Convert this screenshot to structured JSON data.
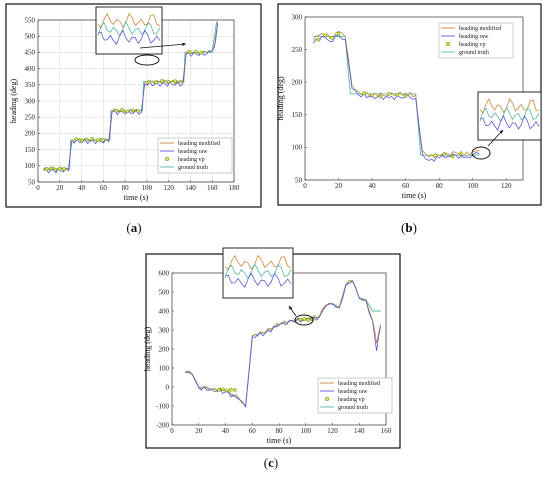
{
  "colors": {
    "modified": "#c98a3a",
    "raw": "#5a5ad8",
    "vp_fill": "#e8e832",
    "vp_edge": "#3a8a3a",
    "truth": "#58b8a0"
  },
  "chart_data": [
    {
      "id": "a",
      "type": "line",
      "panel_label": {
        "open": "(",
        "letter": "a",
        "close": ")"
      },
      "xlabel": "time (s)",
      "ylabel": "heading (deg)",
      "xlim": [
        0,
        180
      ],
      "ylim": [
        50,
        550
      ],
      "xticks": [
        "0",
        "20",
        "40",
        "60",
        "80",
        "100",
        "120",
        "140",
        "160",
        "180"
      ],
      "yticks": [
        "50",
        "100",
        "150",
        "200",
        "250",
        "300",
        "350",
        "400",
        "450",
        "500",
        "550"
      ],
      "grid": true,
      "legend_position": "lower-right",
      "series": [
        {
          "name": "heading modified",
          "key": "modified",
          "x": [
            5,
            28,
            31,
            65,
            68,
            95,
            98,
            133,
            136,
            155,
            158,
            162,
            165
          ],
          "y": [
            90,
            90,
            180,
            180,
            270,
            270,
            358,
            358,
            450,
            450,
            455,
            470,
            545
          ]
        },
        {
          "name": "heading raw",
          "key": "raw",
          "x": [
            5,
            28,
            31,
            65,
            68,
            95,
            98,
            133,
            136,
            155,
            158,
            162,
            165
          ],
          "y": [
            85,
            85,
            175,
            175,
            265,
            265,
            352,
            352,
            445,
            445,
            452,
            465,
            540
          ]
        },
        {
          "name": "ground truth",
          "key": "truth",
          "x": [
            5,
            29,
            30,
            66,
            67,
            96,
            97,
            134,
            135,
            160,
            164
          ],
          "y": [
            90,
            90,
            180,
            180,
            270,
            270,
            360,
            360,
            450,
            450,
            545
          ]
        }
      ],
      "vp_points": {
        "name": "heading vp",
        "x": [
          8,
          12,
          16,
          20,
          24,
          35,
          40,
          45,
          50,
          55,
          60,
          72,
          77,
          82,
          87,
          92,
          102,
          108,
          114,
          120,
          126,
          131,
          140,
          145,
          150
        ],
        "y": [
          90,
          92,
          88,
          91,
          90,
          182,
          178,
          181,
          183,
          179,
          180,
          270,
          272,
          268,
          271,
          269,
          360,
          358,
          362,
          359,
          361,
          360,
          450,
          452,
          449
        ]
      }
    },
    {
      "id": "b",
      "type": "line",
      "panel_label": {
        "open": "(",
        "letter": "b",
        "close": ")"
      },
      "xlabel": "time (s)",
      "ylabel": "heading (deg)",
      "xlim": [
        0,
        130
      ],
      "ylim": [
        50,
        300
      ],
      "xticks": [
        "0",
        "20",
        "40",
        "60",
        "80",
        "100",
        "120"
      ],
      "yticks": [
        "50",
        "100",
        "150",
        "200",
        "250",
        "300"
      ],
      "grid": false,
      "legend_position": "top-right",
      "series": [
        {
          "name": "heading modified",
          "key": "modified",
          "x": [
            5,
            10,
            15,
            20,
            24,
            28,
            32,
            40,
            50,
            60,
            66,
            70,
            74,
            80,
            85,
            90,
            95,
            100,
            104
          ],
          "y": [
            265,
            275,
            268,
            278,
            270,
            195,
            185,
            182,
            180,
            183,
            180,
            95,
            85,
            88,
            90,
            92,
            88,
            93,
            95
          ]
        },
        {
          "name": "heading raw",
          "key": "raw",
          "x": [
            5,
            10,
            15,
            20,
            24,
            28,
            32,
            40,
            50,
            60,
            66,
            70,
            74,
            80,
            85,
            90,
            95,
            100,
            104
          ],
          "y": [
            260,
            270,
            262,
            272,
            265,
            190,
            180,
            178,
            176,
            178,
            175,
            90,
            80,
            84,
            86,
            88,
            84,
            88,
            90
          ]
        },
        {
          "name": "ground truth",
          "key": "truth",
          "x": [
            5,
            24,
            27,
            66,
            69,
            104
          ],
          "y": [
            270,
            270,
            182,
            182,
            88,
            88
          ]
        }
      ],
      "vp_points": {
        "name": "heading vp",
        "x": [
          8,
          12,
          16,
          20,
          35,
          40,
          45,
          50,
          55,
          60,
          78,
          83,
          88,
          93
        ],
        "y": [
          265,
          272,
          268,
          274,
          183,
          180,
          178,
          182,
          181,
          179,
          88,
          90,
          86,
          91
        ]
      }
    },
    {
      "id": "c",
      "type": "line",
      "panel_label": {
        "open": "(",
        "letter": "c",
        "close": ")"
      },
      "xlabel": "time (s)",
      "ylabel": "heading (deg)",
      "xlim": [
        0,
        160
      ],
      "ylim": [
        -200,
        600
      ],
      "xticks": [
        "0",
        "20",
        "40",
        "60",
        "80",
        "100",
        "120",
        "140",
        "160"
      ],
      "yticks": [
        "-200",
        "-100",
        "0",
        "100",
        "200",
        "300",
        "400",
        "500",
        "600"
      ],
      "grid": false,
      "legend_position": "lower-right",
      "series": [
        {
          "name": "heading modified",
          "key": "modified",
          "x": [
            10,
            15,
            20,
            30,
            40,
            50,
            55,
            60,
            70,
            80,
            90,
            100,
            110,
            115,
            120,
            125,
            130,
            135,
            140,
            145,
            150,
            153,
            156
          ],
          "y": [
            80,
            70,
            0,
            -10,
            -20,
            -60,
            -100,
            270,
            290,
            330,
            350,
            360,
            370,
            430,
            440,
            420,
            540,
            560,
            470,
            460,
            350,
            230,
            330
          ]
        },
        {
          "name": "heading raw",
          "key": "raw",
          "x": [
            10,
            15,
            20,
            30,
            40,
            50,
            55,
            60,
            70,
            80,
            90,
            100,
            110,
            115,
            120,
            125,
            130,
            135,
            140,
            145,
            150,
            153,
            156
          ],
          "y": [
            75,
            65,
            -5,
            -15,
            -25,
            -65,
            -105,
            265,
            285,
            325,
            345,
            355,
            365,
            425,
            435,
            415,
            535,
            555,
            465,
            455,
            345,
            190,
            320
          ]
        },
        {
          "name": "ground truth",
          "key": "truth",
          "x": [
            10,
            15,
            20,
            30,
            40,
            50,
            55,
            60,
            70,
            80,
            90,
            100,
            110,
            115,
            120,
            125,
            130,
            135,
            140,
            145,
            150,
            156
          ],
          "y": [
            80,
            70,
            0,
            -10,
            -20,
            -60,
            -100,
            270,
            290,
            330,
            350,
            360,
            370,
            430,
            440,
            420,
            540,
            560,
            470,
            460,
            400,
            400
          ]
        }
      ],
      "vp_points": {
        "name": "heading vp",
        "x": [
          35,
          38,
          41,
          44,
          47,
          96,
          99,
          102,
          105
        ],
        "y": [
          -15,
          -12,
          -18,
          -14,
          -16,
          355,
          358,
          352,
          356
        ]
      }
    }
  ]
}
